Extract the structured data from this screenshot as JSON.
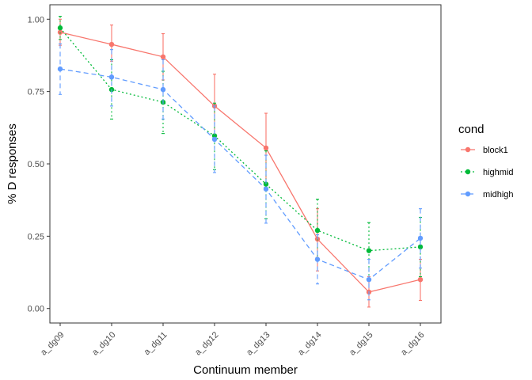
{
  "chart_data": {
    "type": "line",
    "xlabel": "Continuum member",
    "ylabel": "% D responses",
    "categories": [
      "a_dg09",
      "a_dg10",
      "a_dg11",
      "a_dg12",
      "a_dg13",
      "a_dg14",
      "a_dg15",
      "a_dg16"
    ],
    "ylim": [
      -0.05,
      1.05
    ],
    "yticks": [
      0.0,
      0.25,
      0.5,
      0.75,
      1.0
    ],
    "ytick_labels": [
      "0.00",
      "0.25",
      "0.50",
      "0.75",
      "1.00"
    ],
    "grid": false,
    "legend": {
      "title": "cond",
      "position": "right"
    },
    "series": [
      {
        "name": "block1",
        "color": "#F8766D",
        "linestyle": "solid",
        "values": [
          0.955,
          0.913,
          0.87,
          0.7,
          0.555,
          0.24,
          0.057,
          0.1
        ],
        "err_low": [
          0.91,
          0.855,
          0.79,
          0.59,
          0.435,
          0.13,
          0.005,
          0.028
        ],
        "err_high": [
          1.0,
          0.98,
          0.95,
          0.81,
          0.675,
          0.345,
          0.11,
          0.17
        ]
      },
      {
        "name": "highmid",
        "color": "#00BA38",
        "linestyle": "dotted",
        "values": [
          0.97,
          0.757,
          0.713,
          0.597,
          0.43,
          0.27,
          0.2,
          0.213
        ],
        "err_low": [
          0.93,
          0.655,
          0.605,
          0.48,
          0.31,
          0.165,
          0.1,
          0.11
        ],
        "err_high": [
          1.01,
          0.86,
          0.82,
          0.71,
          0.545,
          0.378,
          0.297,
          0.315
        ]
      },
      {
        "name": "midhigh",
        "color": "#619CFF",
        "linestyle": "dashed",
        "values": [
          0.828,
          0.8,
          0.757,
          0.585,
          0.413,
          0.17,
          0.1,
          0.243
        ],
        "err_low": [
          0.74,
          0.7,
          0.655,
          0.47,
          0.295,
          0.085,
          0.03,
          0.14
        ],
        "err_high": [
          0.915,
          0.895,
          0.86,
          0.7,
          0.53,
          0.255,
          0.17,
          0.345
        ]
      }
    ]
  }
}
